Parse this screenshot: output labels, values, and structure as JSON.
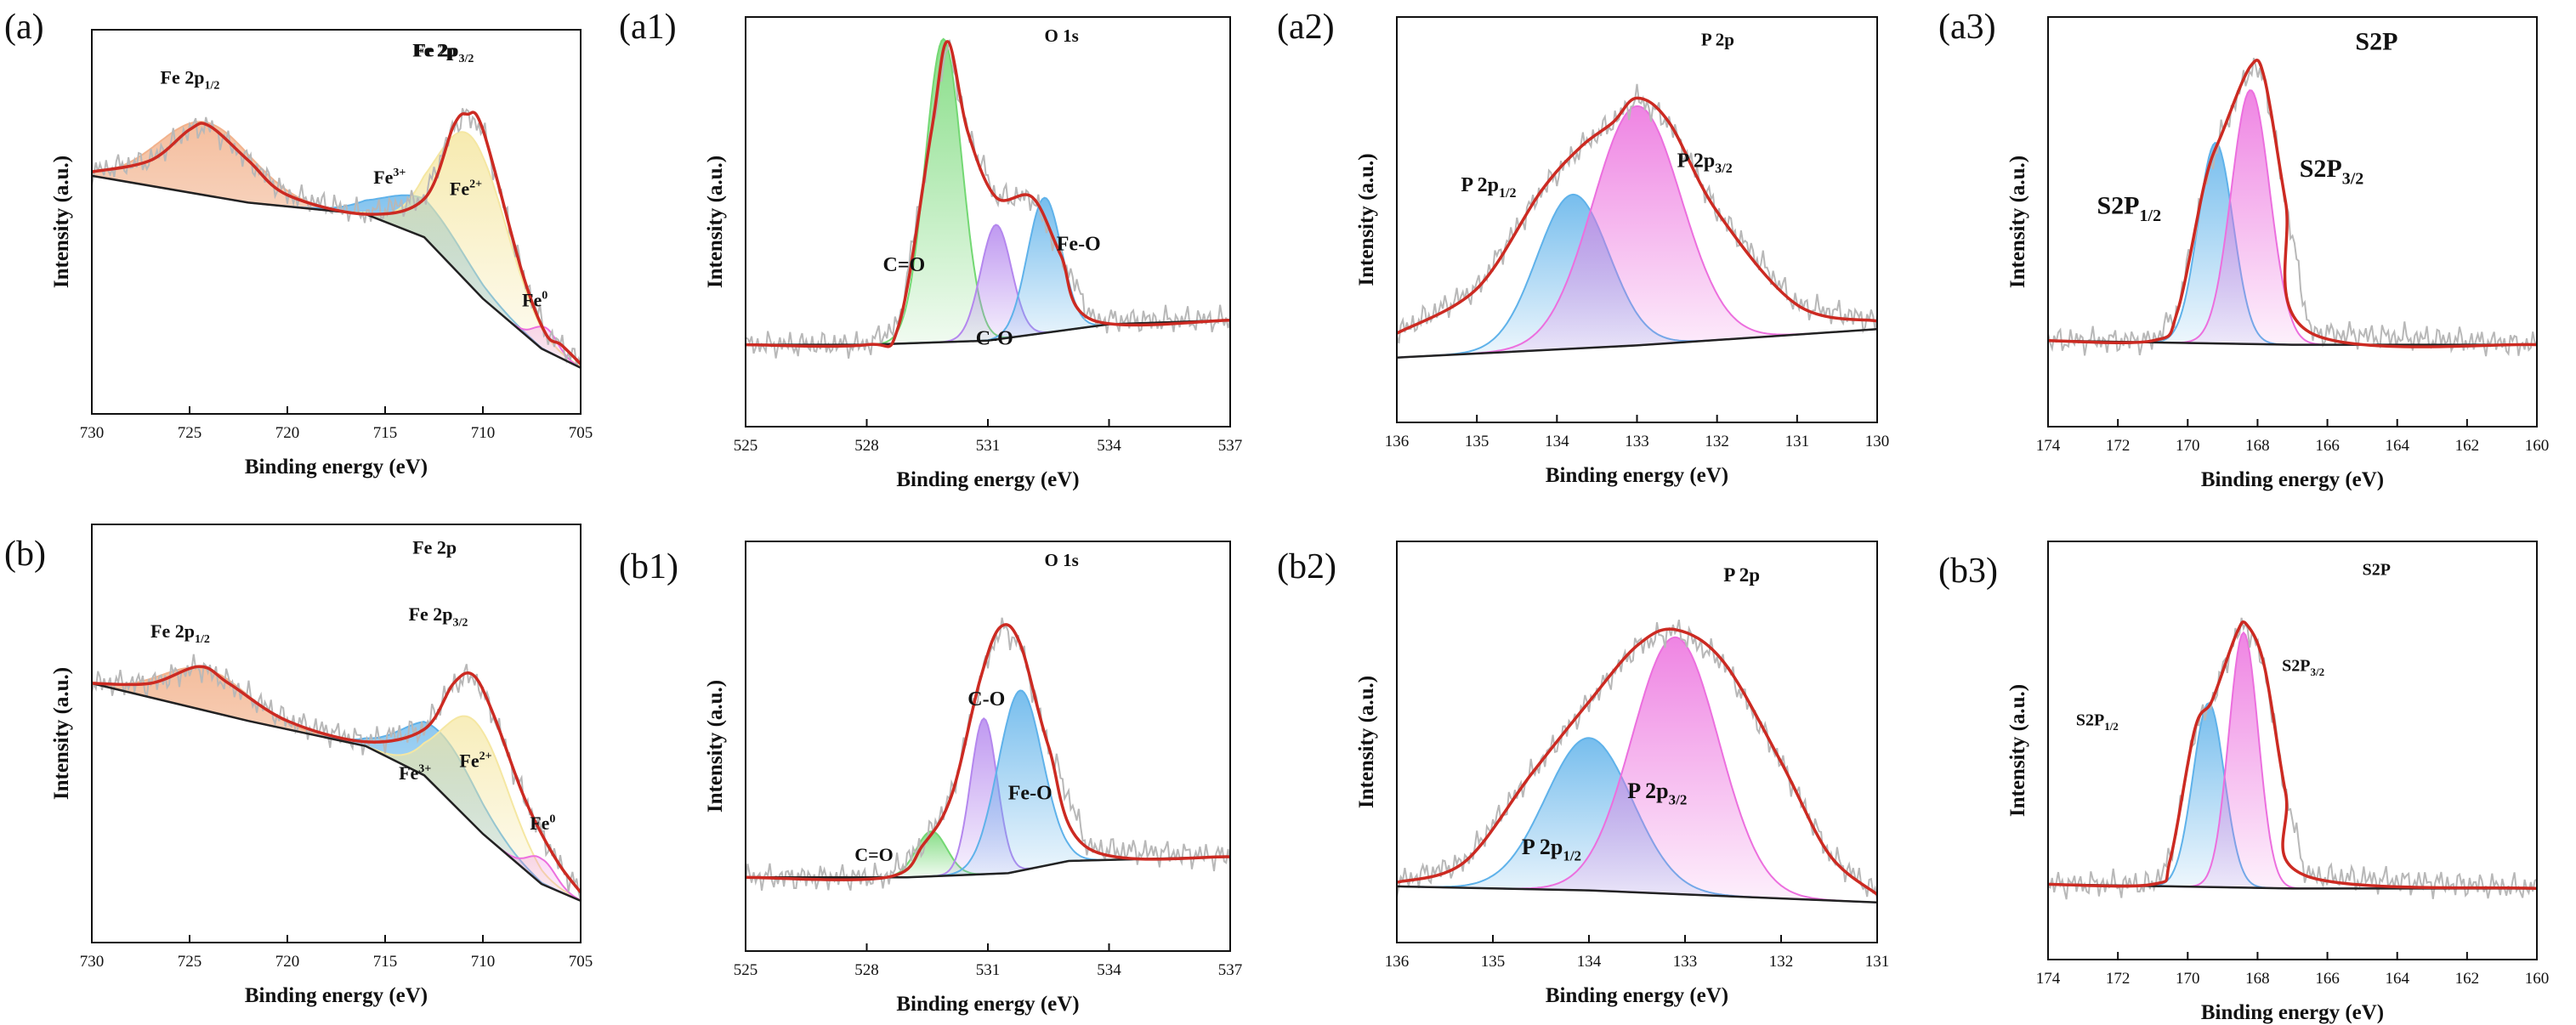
{
  "figure": {
    "colors": {
      "envelope": "#cc2a22",
      "raw": "#b8b8b8",
      "baseline": "#222222",
      "orange": "#f2b28c",
      "yellow": "#f5e7a2",
      "blue": "#5fb2ea",
      "green": "#73d873",
      "purple": "#b487ee",
      "pink": "#ec6fde"
    }
  },
  "chart_data": [
    {
      "panel": "(a)",
      "type": "line",
      "title": "Fe 2p",
      "xlabel": "Binding energy (eV)",
      "ylabel": "Intensity (a.u.)",
      "xlim": [
        730,
        705
      ],
      "ylim": [
        0,
        1
      ],
      "xticks": [
        730,
        725,
        720,
        715,
        710,
        705
      ],
      "baseline": [
        [
          730,
          0.62
        ],
        [
          722,
          0.55
        ],
        [
          716,
          0.52
        ],
        [
          713,
          0.46
        ],
        [
          710,
          0.3
        ],
        [
          707,
          0.17
        ],
        [
          705,
          0.12
        ]
      ],
      "envelope": [
        [
          730,
          0.63
        ],
        [
          727,
          0.66
        ],
        [
          725,
          0.74
        ],
        [
          724,
          0.75
        ],
        [
          722,
          0.66
        ],
        [
          720,
          0.57
        ],
        [
          716,
          0.52
        ],
        [
          713,
          0.56
        ],
        [
          711.5,
          0.75
        ],
        [
          710.8,
          0.78
        ],
        [
          710,
          0.74
        ],
        [
          708,
          0.37
        ],
        [
          706.8,
          0.21
        ],
        [
          706,
          0.18
        ],
        [
          705,
          0.13
        ]
      ],
      "peaks": [
        {
          "name": "Fe 2p1/2",
          "center": 724.2,
          "height": 0.19,
          "width": 2.4,
          "color": "orange"
        },
        {
          "name": "Fe3+",
          "center": 713.0,
          "height": 0.1,
          "width": 2.1,
          "color": "blue"
        },
        {
          "name": "Fe2+",
          "center": 710.6,
          "height": 0.39,
          "width": 1.8,
          "color": "yellow"
        },
        {
          "name": "Fe0",
          "center": 706.8,
          "height": 0.06,
          "width": 0.6,
          "color": "pink"
        }
      ],
      "labels": [
        {
          "text": "Fe 2p",
          "sup": "",
          "sub": "",
          "x": 713.6,
          "y": 0.93,
          "size": 22
        },
        {
          "text": "Fe 2p",
          "sup": "",
          "sub": "1/2",
          "x": 726.5,
          "y": 0.86,
          "size": 22
        },
        {
          "text": "Fe 2p",
          "sup": "",
          "sub": "3/2",
          "x": 713.5,
          "y": 0.93,
          "size": 22
        },
        {
          "text": "Fe",
          "sup": "3+",
          "sub": "",
          "x": 715.6,
          "y": 0.6,
          "size": 22
        },
        {
          "text": "Fe",
          "sup": "2+",
          "sub": "",
          "x": 711.7,
          "y": 0.57,
          "size": 22
        },
        {
          "text": "Fe",
          "sup": "0",
          "sub": "",
          "x": 708.0,
          "y": 0.28,
          "size": 22
        }
      ]
    },
    {
      "panel": "(a1)",
      "type": "line",
      "title": "O 1s",
      "xlabel": "Binding energy (eV)",
      "ylabel": "Intensity (a.u.)",
      "xlim": [
        525,
        537
      ],
      "ylim": [
        0,
        1
      ],
      "xticks": [
        525,
        528,
        531,
        534,
        537
      ],
      "baseline": [
        [
          525,
          0.2
        ],
        [
          528,
          0.2
        ],
        [
          531,
          0.21
        ],
        [
          534,
          0.25
        ],
        [
          537,
          0.26
        ]
      ],
      "envelope": [
        [
          525,
          0.2
        ],
        [
          528,
          0.2
        ],
        [
          528.8,
          0.25
        ],
        [
          529.6,
          0.72
        ],
        [
          530,
          0.94
        ],
        [
          530.5,
          0.72
        ],
        [
          531.2,
          0.56
        ],
        [
          532.1,
          0.56
        ],
        [
          532.8,
          0.42
        ],
        [
          533.6,
          0.26
        ],
        [
          537,
          0.26
        ]
      ],
      "peaks": [
        {
          "name": "C=O",
          "center": 529.9,
          "height": 0.74,
          "width": 0.45,
          "color": "green"
        },
        {
          "name": "C-O",
          "center": 531.2,
          "height": 0.28,
          "width": 0.38,
          "color": "purple"
        },
        {
          "name": "Fe-O",
          "center": 532.4,
          "height": 0.33,
          "width": 0.42,
          "color": "blue"
        }
      ],
      "labels": [
        {
          "text": "O 1s",
          "sup": "",
          "sub": "",
          "x": 532.4,
          "y": 0.94,
          "size": 21
        },
        {
          "text": "C=O",
          "sup": "",
          "sub": "",
          "x": 528.4,
          "y": 0.38,
          "size": 24
        },
        {
          "text": "C-O",
          "sup": "",
          "sub": "",
          "x": 530.7,
          "y": 0.2,
          "size": 24
        },
        {
          "text": "Fe-O",
          "sup": "",
          "sub": "",
          "x": 532.7,
          "y": 0.43,
          "size": 24
        }
      ]
    },
    {
      "panel": "(a2)",
      "type": "line",
      "title": "P 2p",
      "xlabel": "Binding energy (eV)",
      "ylabel": "Intensity (a.u.)",
      "xlim": [
        136,
        130
      ],
      "ylim": [
        0,
        1
      ],
      "xticks": [
        136,
        135,
        134,
        133,
        132,
        131,
        130
      ],
      "baseline": [
        [
          136,
          0.16
        ],
        [
          133,
          0.19
        ],
        [
          130,
          0.23
        ]
      ],
      "envelope": [
        [
          136,
          0.22
        ],
        [
          135,
          0.33
        ],
        [
          134.2,
          0.57
        ],
        [
          133.7,
          0.68
        ],
        [
          133.3,
          0.74
        ],
        [
          133,
          0.8
        ],
        [
          132.6,
          0.74
        ],
        [
          132,
          0.52
        ],
        [
          131,
          0.29
        ],
        [
          130,
          0.25
        ]
      ],
      "peaks": [
        {
          "name": "P 2p1/2",
          "center": 133.8,
          "height": 0.38,
          "width": 0.45,
          "color": "blue"
        },
        {
          "name": "P 2p3/2",
          "center": 133.0,
          "height": 0.59,
          "width": 0.55,
          "color": "pink"
        }
      ],
      "labels": [
        {
          "text": "P 2p",
          "sup": "",
          "sub": "",
          "x": 132.2,
          "y": 0.93,
          "size": 21
        },
        {
          "text": "P 2p",
          "sup": "",
          "sub": "1/2",
          "x": 135.2,
          "y": 0.57,
          "size": 24
        },
        {
          "text": "P 2p",
          "sup": "",
          "sub": "3/2",
          "x": 132.5,
          "y": 0.63,
          "size": 24
        }
      ]
    },
    {
      "panel": "(a3)",
      "type": "line",
      "title": "S2P",
      "xlabel": "Binding energy (eV)",
      "ylabel": "Intensity (a.u.)",
      "xlim": [
        174,
        160
      ],
      "ylim": [
        0,
        1
      ],
      "xticks": [
        174,
        172,
        170,
        168,
        166,
        164,
        162,
        160
      ],
      "baseline": [
        [
          174,
          0.21
        ],
        [
          167,
          0.2
        ],
        [
          160,
          0.2
        ]
      ],
      "envelope": [
        [
          174,
          0.21
        ],
        [
          171,
          0.21
        ],
        [
          170.3,
          0.28
        ],
        [
          169.5,
          0.6
        ],
        [
          169,
          0.72
        ],
        [
          168.2,
          0.88
        ],
        [
          167.8,
          0.85
        ],
        [
          167.2,
          0.55
        ],
        [
          166.5,
          0.23
        ],
        [
          160,
          0.2
        ]
      ],
      "peaks": [
        {
          "name": "S2P1/2",
          "center": 169.2,
          "height": 0.49,
          "width": 0.5,
          "color": "blue"
        },
        {
          "name": "S2P3/2",
          "center": 168.2,
          "height": 0.62,
          "width": 0.55,
          "color": "pink"
        }
      ],
      "labels": [
        {
          "text": "S2P",
          "sup": "",
          "sub": "",
          "x": 165.2,
          "y": 0.92,
          "size": 30
        },
        {
          "text": "S2P",
          "sup": "",
          "sub": "1/2",
          "x": 172.6,
          "y": 0.52,
          "size": 30
        },
        {
          "text": "S2P",
          "sup": "",
          "sub": "3/2",
          "x": 166.8,
          "y": 0.61,
          "size": 30
        }
      ]
    },
    {
      "panel": "(b)",
      "type": "line",
      "title": "Fe 2p",
      "xlabel": "Binding energy (eV)",
      "ylabel": "Intensity (a.u.)",
      "xlim": [
        730,
        705
      ],
      "ylim": [
        0,
        1
      ],
      "xticks": [
        730,
        725,
        720,
        715,
        710,
        705
      ],
      "baseline": [
        [
          730,
          0.62
        ],
        [
          722,
          0.53
        ],
        [
          716,
          0.47
        ],
        [
          713,
          0.4
        ],
        [
          710,
          0.26
        ],
        [
          707,
          0.14
        ],
        [
          705,
          0.1
        ]
      ],
      "envelope": [
        [
          730,
          0.62
        ],
        [
          727,
          0.62
        ],
        [
          724.5,
          0.66
        ],
        [
          723,
          0.62
        ],
        [
          720,
          0.53
        ],
        [
          716,
          0.48
        ],
        [
          713,
          0.51
        ],
        [
          711.5,
          0.62
        ],
        [
          710.5,
          0.64
        ],
        [
          709.5,
          0.55
        ],
        [
          708,
          0.36
        ],
        [
          707,
          0.26
        ],
        [
          706,
          0.18
        ],
        [
          705,
          0.12
        ]
      ],
      "peaks": [
        {
          "name": "Fe 2p1/2",
          "center": 724.2,
          "height": 0.1,
          "width": 2.2,
          "color": "orange"
        },
        {
          "name": "Fe3+",
          "center": 712.2,
          "height": 0.14,
          "width": 1.9,
          "color": "blue"
        },
        {
          "name": "Fe2+",
          "center": 710.4,
          "height": 0.25,
          "width": 1.7,
          "color": "yellow"
        },
        {
          "name": "Fe0",
          "center": 707.0,
          "height": 0.06,
          "width": 0.7,
          "color": "pink"
        }
      ],
      "labels": [
        {
          "text": "Fe 2p",
          "sup": "",
          "sub": "",
          "x": 713.6,
          "y": 0.93,
          "size": 22
        },
        {
          "text": "Fe 2p",
          "sup": "",
          "sub": "1/2",
          "x": 727.0,
          "y": 0.73,
          "size": 22
        },
        {
          "text": "Fe 2p",
          "sup": "",
          "sub": "3/2",
          "x": 713.8,
          "y": 0.77,
          "size": 22
        },
        {
          "text": "Fe",
          "sup": "3+",
          "sub": "",
          "x": 714.3,
          "y": 0.39,
          "size": 22
        },
        {
          "text": "Fe",
          "sup": "2+",
          "sub": "",
          "x": 711.2,
          "y": 0.42,
          "size": 22
        },
        {
          "text": "Fe",
          "sup": "0",
          "sub": "",
          "x": 707.6,
          "y": 0.27,
          "size": 22
        }
      ]
    },
    {
      "panel": "(b1)",
      "type": "line",
      "title": "O 1s",
      "xlabel": "Binding energy (eV)",
      "ylabel": "Intensity (a.u.)",
      "xlim": [
        525,
        537
      ],
      "ylim": [
        0,
        1
      ],
      "xticks": [
        525,
        528,
        531,
        534,
        537
      ],
      "baseline": [
        [
          525,
          0.18
        ],
        [
          529,
          0.18
        ],
        [
          531.5,
          0.19
        ],
        [
          533,
          0.22
        ],
        [
          537,
          0.23
        ]
      ],
      "envelope": [
        [
          525,
          0.18
        ],
        [
          528.5,
          0.18
        ],
        [
          529.4,
          0.26
        ],
        [
          530.1,
          0.38
        ],
        [
          530.8,
          0.66
        ],
        [
          531.3,
          0.79
        ],
        [
          531.8,
          0.75
        ],
        [
          532.5,
          0.5
        ],
        [
          533.5,
          0.25
        ],
        [
          537,
          0.23
        ]
      ],
      "peaks": [
        {
          "name": "C=O",
          "center": 529.6,
          "height": 0.11,
          "width": 0.38,
          "color": "green"
        },
        {
          "name": "C-O",
          "center": 530.9,
          "height": 0.38,
          "width": 0.33,
          "color": "purple"
        },
        {
          "name": "Fe-O",
          "center": 531.8,
          "height": 0.44,
          "width": 0.55,
          "color": "blue"
        }
      ],
      "labels": [
        {
          "text": "O 1s",
          "sup": "",
          "sub": "",
          "x": 532.4,
          "y": 0.94,
          "size": 21
        },
        {
          "text": "C=O",
          "sup": "",
          "sub": "",
          "x": 527.7,
          "y": 0.22,
          "size": 22
        },
        {
          "text": "C-O",
          "sup": "",
          "sub": "",
          "x": 530.5,
          "y": 0.6,
          "size": 24
        },
        {
          "text": "Fe-O",
          "sup": "",
          "sub": "",
          "x": 531.5,
          "y": 0.37,
          "size": 24
        }
      ]
    },
    {
      "panel": "(b2)",
      "type": "line",
      "title": "P 2p",
      "xlabel": "Binding energy (eV)",
      "ylabel": "Intensity (a.u.)",
      "xlim": [
        136,
        131
      ],
      "ylim": [
        0,
        1
      ],
      "xticks": [
        136,
        135,
        134,
        133,
        132,
        131
      ],
      "baseline": [
        [
          136,
          0.14
        ],
        [
          134,
          0.13
        ],
        [
          132,
          0.11
        ],
        [
          131,
          0.1
        ]
      ],
      "envelope": [
        [
          136,
          0.15
        ],
        [
          135.3,
          0.2
        ],
        [
          134.6,
          0.42
        ],
        [
          134,
          0.6
        ],
        [
          133.5,
          0.74
        ],
        [
          133.1,
          0.78
        ],
        [
          132.6,
          0.7
        ],
        [
          132,
          0.45
        ],
        [
          131.5,
          0.22
        ],
        [
          131,
          0.12
        ]
      ],
      "peaks": [
        {
          "name": "P 2p1/2",
          "center": 134.0,
          "height": 0.38,
          "width": 0.45,
          "color": "blue"
        },
        {
          "name": "P 2p3/2",
          "center": 133.1,
          "height": 0.64,
          "width": 0.45,
          "color": "pink"
        }
      ],
      "labels": [
        {
          "text": "P 2p",
          "sup": "",
          "sub": "",
          "x": 132.6,
          "y": 0.9,
          "size": 23
        },
        {
          "text": "P 2p",
          "sup": "",
          "sub": "1/2",
          "x": 134.7,
          "y": 0.22,
          "size": 26
        },
        {
          "text": "P 2p",
          "sup": "",
          "sub": "3/2",
          "x": 133.6,
          "y": 0.36,
          "size": 26
        }
      ]
    },
    {
      "panel": "(b3)",
      "type": "line",
      "title": "S2P",
      "xlabel": "Binding energy (eV)",
      "ylabel": "Intensity (a.u.)",
      "xlim": [
        174,
        160
      ],
      "ylim": [
        0,
        1
      ],
      "xticks": [
        174,
        172,
        170,
        168,
        166,
        164,
        162,
        160
      ],
      "baseline": [
        [
          174,
          0.18
        ],
        [
          167,
          0.17
        ],
        [
          160,
          0.17
        ]
      ],
      "envelope": [
        [
          174,
          0.18
        ],
        [
          171,
          0.18
        ],
        [
          170.5,
          0.24
        ],
        [
          169.8,
          0.55
        ],
        [
          169.3,
          0.62
        ],
        [
          168.6,
          0.78
        ],
        [
          168.3,
          0.8
        ],
        [
          167.8,
          0.7
        ],
        [
          167.2,
          0.4
        ],
        [
          166.6,
          0.2
        ],
        [
          160,
          0.17
        ]
      ],
      "peaks": [
        {
          "name": "S2P1/2",
          "center": 169.4,
          "height": 0.44,
          "width": 0.45,
          "color": "blue"
        },
        {
          "name": "S2P3/2",
          "center": 168.4,
          "height": 0.61,
          "width": 0.42,
          "color": "pink"
        }
      ],
      "labels": [
        {
          "text": "S2P",
          "sup": "",
          "sub": "",
          "x": 165.0,
          "y": 0.92,
          "size": 20
        },
        {
          "text": "S2P",
          "sup": "",
          "sub": "1/2",
          "x": 173.2,
          "y": 0.56,
          "size": 20
        },
        {
          "text": "S2P",
          "sup": "",
          "sub": "3/2",
          "x": 167.3,
          "y": 0.69,
          "size": 20
        }
      ]
    }
  ]
}
